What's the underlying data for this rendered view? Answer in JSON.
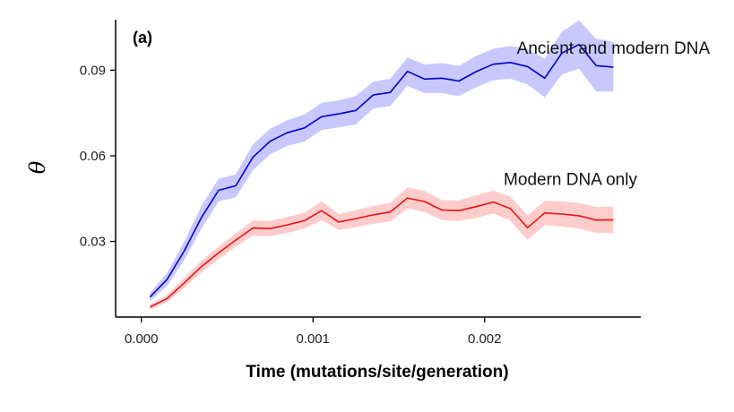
{
  "chart_data": {
    "type": "line",
    "panel_label": "(a)",
    "xlabel": "Time (mutations/site/generation)",
    "ylabel": "θ",
    "xlim": [
      -0.00015,
      0.00291
    ],
    "ylim": [
      0.0035,
      0.1077
    ],
    "x_ticks": [
      {
        "value": 0.0,
        "label": "0.000"
      },
      {
        "value": 0.001,
        "label": "0.001"
      },
      {
        "value": 0.002,
        "label": "0.002"
      }
    ],
    "y_ticks": [
      {
        "value": 0.03,
        "label": "0.03"
      },
      {
        "value": 0.06,
        "label": "0.06"
      },
      {
        "value": 0.09,
        "label": "0.09"
      }
    ],
    "grid": false,
    "legend": "none",
    "x": [
      5e-05,
      0.00015,
      0.00025,
      0.00035,
      0.00045,
      0.00055,
      0.00065,
      0.00075,
      0.00085,
      0.00095,
      0.00105,
      0.00115,
      0.00125,
      0.00135,
      0.00145,
      0.00155,
      0.00165,
      0.00175,
      0.00185,
      0.00195,
      0.00205,
      0.00215,
      0.00225,
      0.00235,
      0.00245,
      0.00255,
      0.00265,
      0.00275
    ],
    "series": [
      {
        "name": "Ancient and modern DNA",
        "color": "#0000cc",
        "band_color": "#c8c8ff",
        "values": [
          0.0105,
          0.0167,
          0.0267,
          0.0384,
          0.0479,
          0.0495,
          0.0595,
          0.0651,
          0.0681,
          0.0698,
          0.0737,
          0.0747,
          0.0759,
          0.0813,
          0.0822,
          0.0896,
          0.0869,
          0.0872,
          0.0862,
          0.0895,
          0.0921,
          0.0927,
          0.0913,
          0.0872,
          0.096,
          0.099,
          0.0916,
          0.0911
        ],
        "lower": [
          0.009,
          0.0145,
          0.0235,
          0.0345,
          0.044,
          0.0455,
          0.055,
          0.0605,
          0.0635,
          0.065,
          0.069,
          0.07,
          0.071,
          0.0765,
          0.0775,
          0.0845,
          0.082,
          0.082,
          0.081,
          0.084,
          0.0865,
          0.087,
          0.085,
          0.0805,
          0.0885,
          0.0905,
          0.0825,
          0.0825
        ],
        "upper": [
          0.012,
          0.019,
          0.03,
          0.0425,
          0.052,
          0.0535,
          0.064,
          0.0695,
          0.0725,
          0.0745,
          0.0785,
          0.0795,
          0.081,
          0.086,
          0.087,
          0.0945,
          0.092,
          0.0925,
          0.0915,
          0.095,
          0.0975,
          0.0985,
          0.0975,
          0.094,
          0.1035,
          0.1075,
          0.101,
          0.1
        ],
        "label_at": [
          0.00275,
          0.0957
        ]
      },
      {
        "name": "Modern DNA only",
        "color": "#ee1111",
        "band_color": "#ffcccc",
        "values": [
          0.007,
          0.01,
          0.0155,
          0.0212,
          0.026,
          0.0305,
          0.0347,
          0.0345,
          0.0358,
          0.0373,
          0.0408,
          0.0368,
          0.038,
          0.0393,
          0.0403,
          0.0452,
          0.044,
          0.041,
          0.0408,
          0.0422,
          0.0438,
          0.0415,
          0.0348,
          0.04,
          0.0396,
          0.039,
          0.0375,
          0.0376
        ],
        "lower": [
          0.0062,
          0.0087,
          0.0138,
          0.0192,
          0.0238,
          0.0282,
          0.032,
          0.0318,
          0.033,
          0.0345,
          0.0375,
          0.034,
          0.035,
          0.0362,
          0.037,
          0.0415,
          0.0403,
          0.0375,
          0.0372,
          0.0382,
          0.0398,
          0.0373,
          0.0305,
          0.0358,
          0.0352,
          0.0345,
          0.033,
          0.033
        ],
        "upper": [
          0.0078,
          0.0113,
          0.0172,
          0.0232,
          0.0282,
          0.0328,
          0.0374,
          0.0372,
          0.0386,
          0.0401,
          0.0441,
          0.0396,
          0.041,
          0.0424,
          0.0436,
          0.0489,
          0.0477,
          0.0445,
          0.0444,
          0.0462,
          0.0478,
          0.0457,
          0.0391,
          0.0442,
          0.044,
          0.0435,
          0.042,
          0.0422
        ],
        "label_at": [
          0.0025,
          0.0498
        ]
      }
    ]
  }
}
